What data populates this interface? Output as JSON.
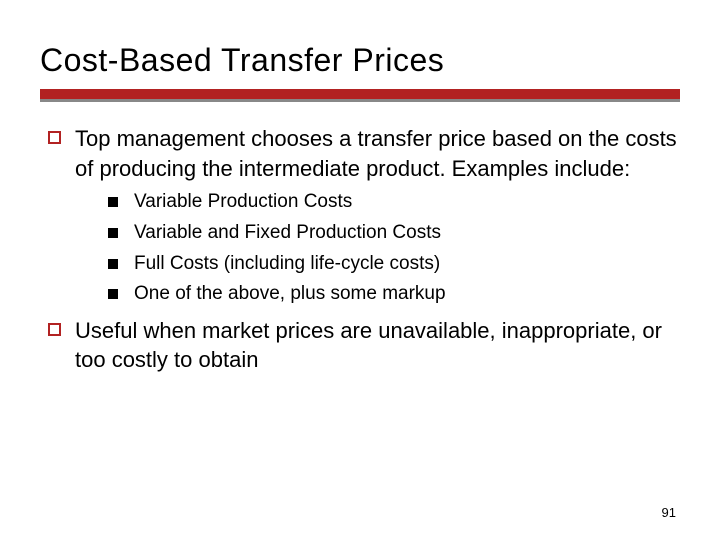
{
  "title": "Cost-Based Transfer Prices",
  "bullets": [
    {
      "text": "Top management chooses a transfer price based on the costs of producing the intermediate product.  Examples include:",
      "subbullets": [
        "Variable Production Costs",
        "Variable and Fixed Production Costs",
        "Full Costs (including life-cycle costs)",
        "One of the above, plus some markup"
      ]
    },
    {
      "text": "Useful when market prices are unavailable, inappropriate, or too costly to obtain",
      "subbullets": []
    }
  ],
  "pageNumber": "91",
  "colors": {
    "divider_red": "#b22222",
    "divider_gray": "#888888",
    "bullet_outline": "#b22222",
    "bullet_filled": "#000000",
    "text": "#000000",
    "background": "#ffffff"
  },
  "typography": {
    "title_fontsize": 32,
    "level1_fontsize": 22,
    "level2_fontsize": 19,
    "pagenum_fontsize": 13,
    "font_family": "Verdana"
  }
}
